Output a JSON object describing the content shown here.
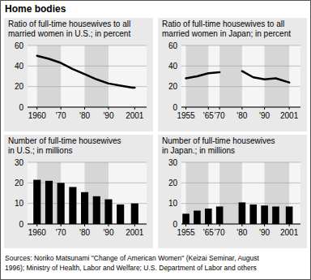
{
  "title": "Home bodies",
  "source": [
    "Sources: Noriko Matsunami \"Change of American Women\" (Keizai Seminar, August",
    "1996); Ministry of Health, Labor and Welfare; U.S. Department of Labor and others"
  ],
  "chart_data": [
    {
      "type": "line",
      "title": [
        "Ratio of full-time housewives to all",
        "married women in U.S.; in percent"
      ],
      "x": [
        1960,
        1965,
        1970,
        1975,
        1980,
        1985,
        1990,
        1995,
        2000,
        2001
      ],
      "values": [
        50,
        47,
        43,
        37,
        32,
        27,
        23,
        21,
        19,
        19
      ],
      "color": "#000000",
      "xlim": [
        1956,
        2006
      ],
      "xticks": [
        1960,
        {
          "value": 1970,
          "label": "'70"
        },
        {
          "value": 1980,
          "label": "'80"
        },
        {
          "value": 1990,
          "label": "'90"
        },
        2001
      ],
      "ylim": [
        0,
        60
      ],
      "yticks": [
        0,
        20,
        40,
        60
      ],
      "grid": true
    },
    {
      "type": "line",
      "title": [
        "Ratio of full-time housewives to all",
        "married women in Japan; in percent"
      ],
      "x": [
        1955,
        1960,
        1965,
        1970,
        1975,
        1980,
        1985,
        1990,
        1995,
        2001
      ],
      "values": [
        28,
        30,
        33,
        34,
        null,
        35,
        29,
        27,
        28,
        24
      ],
      "color": "#000000",
      "xlim": [
        1953,
        2006
      ],
      "xticks": [
        1955,
        {
          "value": 1965,
          "label": "'65"
        },
        {
          "value": 1970,
          "label": "'70"
        },
        {
          "value": 1980,
          "label": "'80"
        },
        {
          "value": 1990,
          "label": "'90"
        },
        2001
      ],
      "ylim": [
        0,
        60
      ],
      "yticks": [
        0,
        20,
        40,
        60
      ],
      "grid": true
    },
    {
      "type": "bar",
      "title": [
        "Number of full-time housewives",
        "in U.S.; in millions"
      ],
      "x": [
        1960,
        1965,
        1970,
        1975,
        1980,
        1985,
        1990,
        1995,
        2001
      ],
      "values": [
        21.5,
        21,
        20,
        18,
        15.5,
        13.5,
        12,
        9.5,
        10
      ],
      "color": "#000000",
      "xlim": [
        1956,
        2006
      ],
      "xticks": [
        1960,
        {
          "value": 1970,
          "label": "'70"
        },
        {
          "value": 1980,
          "label": "'80"
        },
        {
          "value": 1990,
          "label": "'90"
        },
        2001
      ],
      "ylim": [
        0,
        30
      ],
      "yticks": [
        0,
        10,
        20,
        30
      ],
      "grid": true
    },
    {
      "type": "bar",
      "title": [
        "Number of full-time housewives",
        "in Japan.; in millions"
      ],
      "x": [
        1955,
        1960,
        1965,
        1970,
        1980,
        1985,
        1990,
        1995,
        2001
      ],
      "values": [
        5,
        6.5,
        7.5,
        8.5,
        10.5,
        9.5,
        9,
        8.5,
        8.5
      ],
      "color": "#000000",
      "xlim": [
        1953,
        2006
      ],
      "xticks": [
        1955,
        {
          "value": 1965,
          "label": "'65"
        },
        {
          "value": 1970,
          "label": "'70"
        },
        {
          "value": 1980,
          "label": "'80"
        },
        {
          "value": 1990,
          "label": "'90"
        },
        2001
      ],
      "ylim": [
        0,
        30
      ],
      "yticks": [
        0,
        10,
        20,
        30
      ],
      "grid": true
    }
  ]
}
